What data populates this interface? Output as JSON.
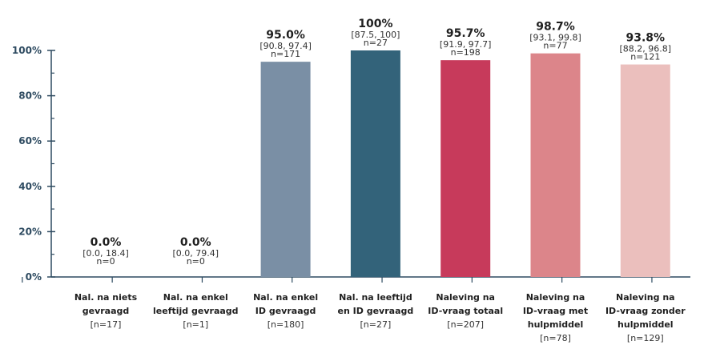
{
  "chart_data": {
    "type": "bar",
    "title": "",
    "xlabel": "",
    "ylabel": "",
    "ylim": [
      0,
      100
    ],
    "yticks": [
      "0%",
      "20%",
      "40%",
      "60%",
      "80%",
      "100%"
    ],
    "grid": false,
    "categories": [
      {
        "lines": [
          "Nal. na niets",
          "gevraagd"
        ],
        "n": "[n=17]"
      },
      {
        "lines": [
          "Nal. na enkel",
          "leeftijd gevraagd"
        ],
        "n": "[n=1]"
      },
      {
        "lines": [
          "Nal. na enkel",
          "ID gevraagd"
        ],
        "n": "[n=180]"
      },
      {
        "lines": [
          "Nal. na leeftijd",
          "en ID gevraagd"
        ],
        "n": "[n=27]"
      },
      {
        "lines": [
          "Naleving na",
          "ID-vraag totaal"
        ],
        "n": "[n=207]"
      },
      {
        "lines": [
          "Naleving na",
          "ID-vraag met",
          "hulpmiddel"
        ],
        "n": "[n=78]"
      },
      {
        "lines": [
          "Naleving na",
          "ID-vraag zonder",
          "hulpmiddel"
        ],
        "n": "[n=129]"
      }
    ],
    "values": [
      0.0,
      0.0,
      95.0,
      100,
      95.7,
      98.7,
      93.8
    ],
    "value_labels": [
      "0.0%",
      "0.0%",
      "95.0%",
      "100%",
      "95.7%",
      "98.7%",
      "93.8%"
    ],
    "ci_labels": [
      "[0.0, 18.4]",
      "[0.0, 79.4]",
      "[90.8, 97.4]",
      "[87.5, 100]",
      "[91.9, 97.7]",
      "[93.1, 99.8]",
      "[88.2, 96.8]"
    ],
    "n_labels": [
      "n=0",
      "n=0",
      "n=171",
      "n=27",
      "n=198",
      "n=77",
      "n=121"
    ],
    "colors": [
      "#7a8fa5",
      "#7a8fa5",
      "#7a8fa5",
      "#33637a",
      "#c73a5b",
      "#dc858a",
      "#ebbfbd"
    ],
    "axis_color": "#2d4a60"
  }
}
